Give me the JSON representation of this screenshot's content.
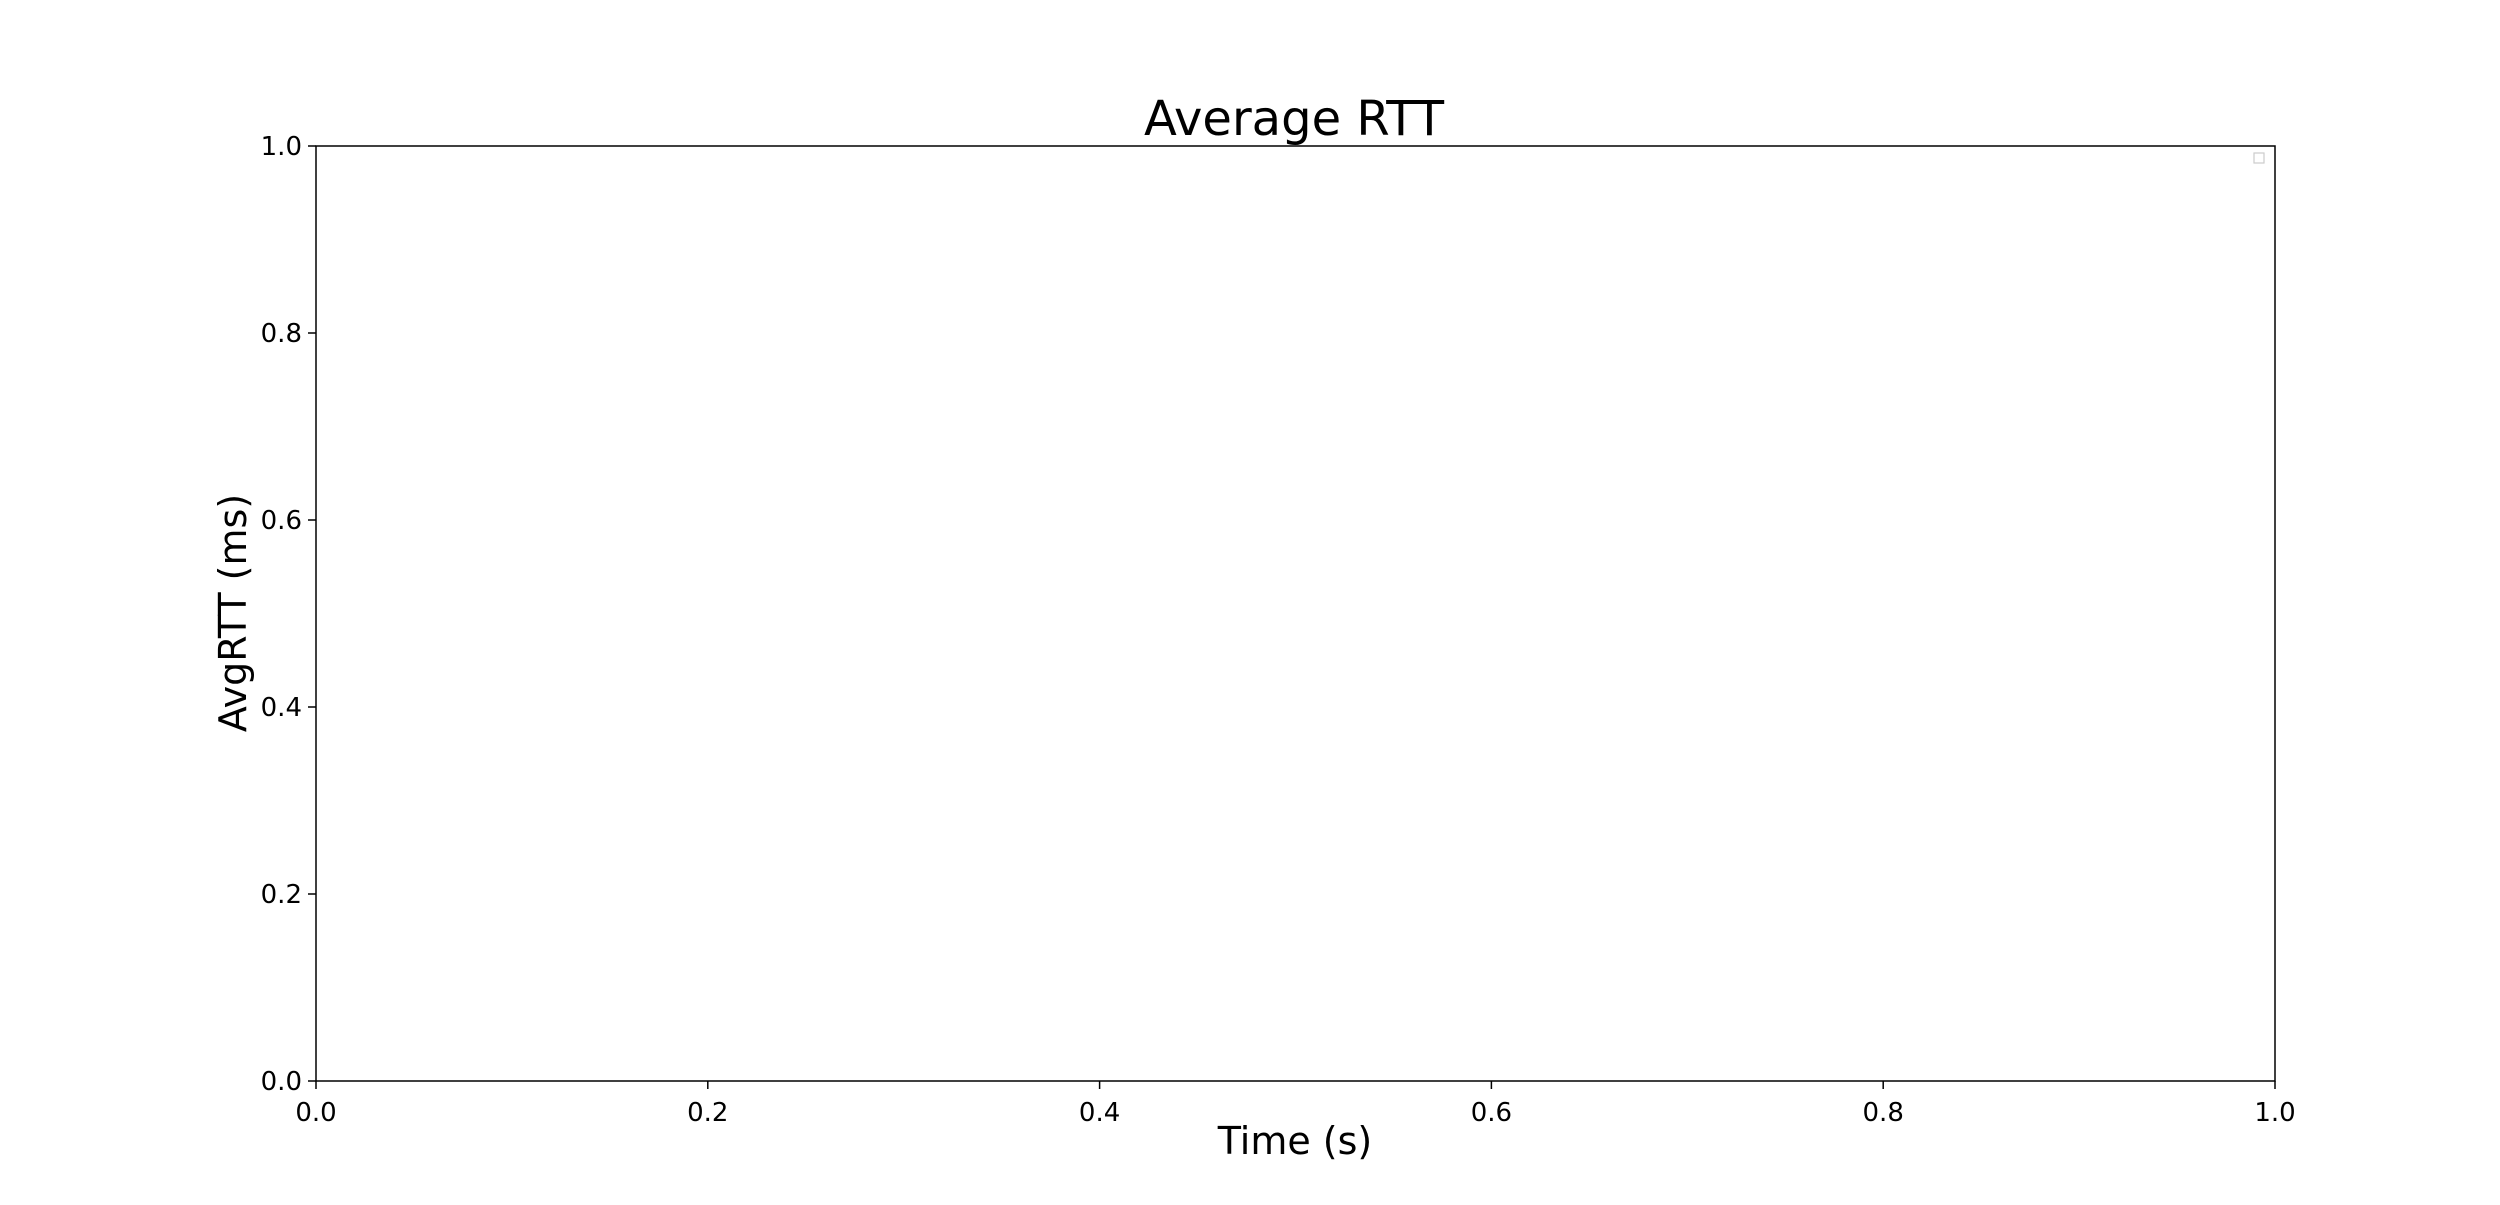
{
  "chart_data": {
    "type": "line",
    "title": "Average RTT",
    "xlabel": "Time (s)",
    "ylabel": "AvgRTT (ms)",
    "xlim": [
      0.0,
      1.0
    ],
    "ylim": [
      0.0,
      1.0
    ],
    "xticks": [
      "0.0",
      "0.2",
      "0.4",
      "0.6",
      "0.8",
      "1.0"
    ],
    "yticks": [
      "0.0",
      "0.2",
      "0.4",
      "0.6",
      "0.8",
      "1.0"
    ],
    "series": [],
    "grid": false,
    "legend": "top-right",
    "colors": {
      "axis": "#000000",
      "background": "#ffffff",
      "legend_border": "#cccccc"
    }
  }
}
